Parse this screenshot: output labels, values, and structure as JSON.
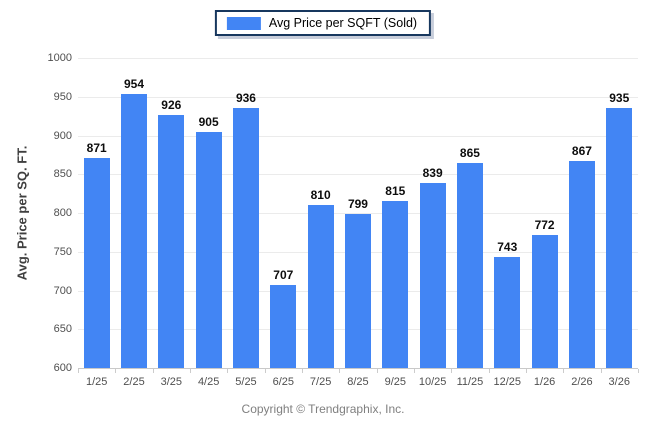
{
  "legend": {
    "label": "Avg Price per SQFT (Sold)"
  },
  "footer": {
    "copyright": "Copyright © Trendgraphix, Inc."
  },
  "colors": {
    "bar": "#4285F4",
    "legend_border": "#17375E",
    "legend_shadow": "#c7cdda",
    "gridline": "#ebebeb",
    "baseline": "#c9c9c9",
    "tick_label": "#4f4f4f",
    "value_label": "#0d0d0d",
    "axis_title": "#3f3f3f",
    "footer_text": "#808080"
  },
  "chart_data": {
    "type": "bar",
    "title": "Avg Price per SQFT (Sold)",
    "categories": [
      "1/25",
      "2/25",
      "3/25",
      "4/25",
      "5/25",
      "6/25",
      "7/25",
      "8/25",
      "9/25",
      "10/25",
      "11/25",
      "12/25",
      "1/26",
      "2/26",
      "3/26"
    ],
    "values": [
      871,
      954,
      926,
      905,
      936,
      707,
      810,
      799,
      815,
      839,
      865,
      743,
      772,
      867,
      935
    ],
    "xlabel": "",
    "ylabel": "Avg. Price per SQ. FT.",
    "ylim": [
      600,
      1000
    ],
    "ytick_step": 50,
    "grid": true,
    "legend_position": "top-center",
    "value_labels_shown": true
  }
}
